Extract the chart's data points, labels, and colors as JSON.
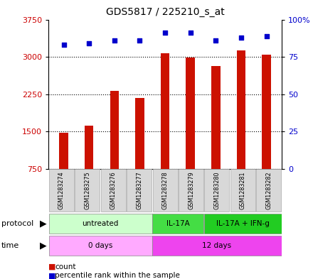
{
  "title": "GDS5817 / 225210_s_at",
  "samples": [
    "GSM1283274",
    "GSM1283275",
    "GSM1283276",
    "GSM1283277",
    "GSM1283278",
    "GSM1283279",
    "GSM1283280",
    "GSM1283281",
    "GSM1283282"
  ],
  "counts": [
    1480,
    1620,
    2310,
    2180,
    3070,
    2980,
    2820,
    3130,
    3040
  ],
  "percentile_ranks": [
    83,
    84,
    86,
    86,
    91,
    91,
    86,
    88,
    89
  ],
  "bar_color": "#cc1100",
  "dot_color": "#0000cc",
  "ylim_left": [
    750,
    3750
  ],
  "ylim_right": [
    0,
    100
  ],
  "yticks_left": [
    750,
    1500,
    2250,
    3000,
    3750
  ],
  "ytick_labels_left": [
    "750",
    "1500",
    "2250",
    "3000",
    "3750"
  ],
  "yticks_right": [
    0,
    25,
    50,
    75,
    100
  ],
  "ytick_labels_right": [
    "0",
    "25",
    "50",
    "75",
    "100%"
  ],
  "protocol_groups": [
    {
      "label": "untreated",
      "start": 0,
      "end": 4,
      "color": "#ccffcc"
    },
    {
      "label": "IL-17A",
      "start": 4,
      "end": 6,
      "color": "#44dd44"
    },
    {
      "label": "IL-17A + IFN-g",
      "start": 6,
      "end": 9,
      "color": "#22cc22"
    }
  ],
  "time_groups": [
    {
      "label": "0 days",
      "start": 0,
      "end": 4,
      "color": "#ffaaff"
    },
    {
      "label": "12 days",
      "start": 4,
      "end": 9,
      "color": "#ee44ee"
    }
  ],
  "background_color": "#ffffff",
  "tick_label_color_left": "#cc0000",
  "tick_label_color_right": "#0000cc",
  "bar_width": 0.35
}
